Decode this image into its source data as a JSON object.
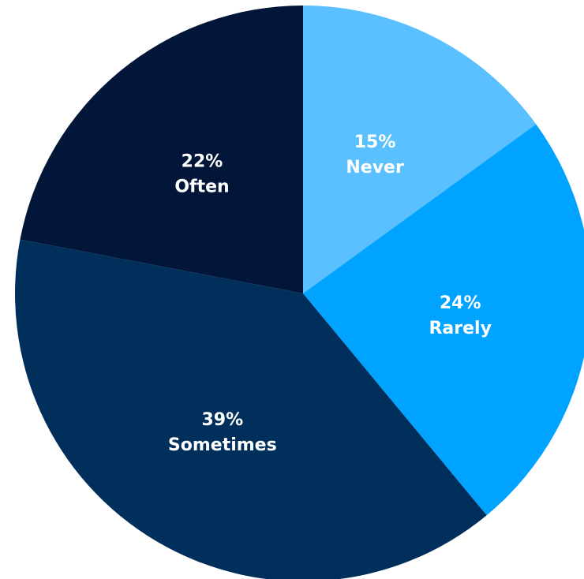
{
  "chart_data": {
    "type": "pie",
    "start_angle": "top",
    "direction": "clockwise",
    "slices": [
      {
        "label": "Never",
        "value": 15,
        "value_label": "15%",
        "color": "#5BC0FF"
      },
      {
        "label": "Rarely",
        "value": 24,
        "value_label": "24%",
        "color": "#00A3FF"
      },
      {
        "label": "Sometimes",
        "value": 39,
        "value_label": "39%",
        "color": "#002F5C"
      },
      {
        "label": "Often",
        "value": 22,
        "value_label": "22%",
        "color": "#011638"
      }
    ]
  }
}
